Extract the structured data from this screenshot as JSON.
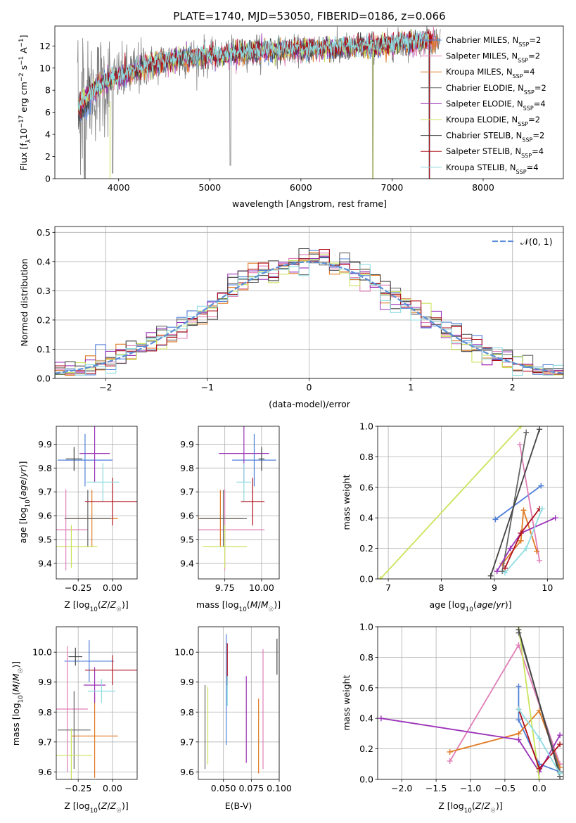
{
  "colors": {
    "Chabrier MILES": "#4f7fd8",
    "Salpeter MILES": "#e07fb8",
    "Kroupa MILES": "#e07a24",
    "Chabrier ELODIE": "#666666",
    "Salpeter ELODIE": "#9b32b8",
    "Kroupa ELODIE": "#c9e45b",
    "Chabrier STELIB": "#444444",
    "Salpeter STELIB": "#b0101c",
    "Kroupa STELIB": "#8fdce0",
    "data": "#808080",
    "gauss": "#5b8ed6"
  },
  "chart_data": [
    {
      "id": "spectrum",
      "type": "line",
      "title": "PLATE=1740, MJD=53050, FIBERID=0186, z=0.066",
      "xlabel": "wavelength [Angstrom, rest frame]",
      "ylabel": "Flux [f_λ 10^-17 erg cm^-2 s^-1 A^-1]",
      "xlim": [
        3300,
        8880
      ],
      "ylim": [
        0,
        13.8
      ],
      "xticks": [
        4000,
        5000,
        6000,
        7000,
        8000
      ],
      "yticks": [
        0,
        2,
        4,
        6,
        8,
        10,
        12
      ],
      "legend_loc": "upper right",
      "legend": [
        {
          "label": "Chabrier MILES, N",
          "sub": "SSP",
          "tail": "=2",
          "key": "Chabrier MILES"
        },
        {
          "label": "Salpeter MILES, N",
          "sub": "SSP",
          "tail": "=2",
          "key": "Salpeter MILES"
        },
        {
          "label": "Kroupa MILES, N",
          "sub": "SSP",
          "tail": "=4",
          "key": "Kroupa MILES"
        },
        {
          "label": "Chabrier ELODIE, N",
          "sub": "SSP",
          "tail": "=2",
          "key": "Chabrier ELODIE"
        },
        {
          "label": "Salpeter ELODIE, N",
          "sub": "SSP",
          "tail": "=4",
          "key": "Salpeter ELODIE"
        },
        {
          "label": "Kroupa ELODIE, N",
          "sub": "SSP",
          "tail": "=2",
          "key": "Kroupa ELODIE"
        },
        {
          "label": "Chabrier STELIB, N",
          "sub": "SSP",
          "tail": "=2",
          "key": "Chabrier STELIB"
        },
        {
          "label": "Salpeter STELIB, N",
          "sub": "SSP",
          "tail": "=4",
          "key": "Salpeter STELIB"
        },
        {
          "label": "Kroupa STELIB, N",
          "sub": "SSP",
          "tail": "=4",
          "key": "Kroupa STELIB"
        }
      ],
      "continuum": {
        "x": [
          3550,
          3650,
          3750,
          3850,
          3950,
          4050,
          4150,
          4250,
          4400,
          4600,
          4800,
          5000,
          5200,
          5500,
          5800,
          6000,
          6300,
          6600,
          7000,
          7300,
          7500
        ],
        "y": [
          6.2,
          7.5,
          8.2,
          8.6,
          9.0,
          9.3,
          9.6,
          10.0,
          10.4,
          10.8,
          11.0,
          11.1,
          11.2,
          11.5,
          11.6,
          11.6,
          11.8,
          11.9,
          12.1,
          12.4,
          12.6
        ]
      },
      "absorption_features": [
        {
          "x": 3934,
          "y": 0.5
        },
        {
          "x": 5225,
          "y": 1.2
        },
        {
          "x": 6790,
          "y": 0
        },
        {
          "x": 7410,
          "y": 0
        }
      ]
    },
    {
      "id": "residuals",
      "type": "histogram",
      "xlabel": "(data-model)/error",
      "ylabel": "Normed distribution",
      "xlim": [
        -2.5,
        2.5
      ],
      "ylim": [
        0,
        0.52
      ],
      "xticks": [
        -2,
        -1,
        0,
        1,
        2
      ],
      "yticks": [
        0.0,
        0.1,
        0.2,
        0.3,
        0.4,
        0.5
      ],
      "bin_width": 0.1,
      "legend": "𝒩(0, 1)",
      "legend_loc": "upper right",
      "gaussian": {
        "mean": 0,
        "sigma": 1
      }
    },
    {
      "id": "age_vs_Z",
      "type": "errorbar",
      "xlabel": "Z [log10(Z/Z☉)]",
      "ylabel": "age [log10(age/yr)]",
      "xlim": [
        -0.41,
        0.18
      ],
      "ylim": [
        9.335,
        9.975
      ],
      "xticks": [
        -0.25,
        0.0
      ],
      "yticks": [
        9.4,
        9.5,
        9.6,
        9.7,
        9.8,
        9.9
      ],
      "points": [
        {
          "model": "Chabrier MILES",
          "x": -0.2,
          "xerr": 0.2,
          "y": 9.833,
          "yerr": 0.11
        },
        {
          "model": "Salpeter MILES",
          "x": -0.34,
          "xerr": 0.16,
          "y": 9.541,
          "yerr": 0.17
        },
        {
          "model": "Kroupa MILES",
          "x": -0.15,
          "xerr": 0.19,
          "y": 9.588,
          "yerr": 0.12
        },
        {
          "model": "Chabrier ELODIE",
          "x": -0.18,
          "xerr": 0.17,
          "y": 9.588,
          "yerr": 0.12
        },
        {
          "model": "Salpeter ELODIE",
          "x": -0.13,
          "xerr": 0.11,
          "y": 9.861,
          "yerr": 0.12
        },
        {
          "model": "Kroupa ELODIE",
          "x": -0.3,
          "xerr": 0.19,
          "y": 9.471,
          "yerr": 0.09
        },
        {
          "model": "Chabrier STELIB",
          "x": -0.28,
          "xerr": 0.06,
          "y": 9.838,
          "yerr": 0.05
        },
        {
          "model": "Salpeter STELIB",
          "x": 0.0,
          "xerr": 0.2,
          "y": 9.659,
          "yerr": 0.1
        },
        {
          "model": "Kroupa STELIB",
          "x": -0.07,
          "xerr": 0.12,
          "y": 9.741,
          "yerr": 0.08
        }
      ]
    },
    {
      "id": "age_vs_mass",
      "type": "errorbar",
      "xlabel": "mass [log10(M/M☉)]",
      "ylabel": "",
      "xlim": [
        9.57,
        10.12
      ],
      "ylim": [
        9.335,
        9.975
      ],
      "xticks": [
        9.75,
        10.0
      ],
      "yticks": [
        9.4,
        9.5,
        9.6,
        9.7,
        9.8,
        9.9
      ],
      "points": [
        {
          "model": "Chabrier MILES",
          "x": 9.95,
          "xerr": 0.15,
          "y": 9.833,
          "yerr": 0.11
        },
        {
          "model": "Salpeter MILES",
          "x": 9.75,
          "xerr": 0.27,
          "y": 9.541,
          "yerr": 0.17
        },
        {
          "model": "Kroupa MILES",
          "x": 9.72,
          "xerr": 0.15,
          "y": 9.588,
          "yerr": 0.12
        },
        {
          "model": "Chabrier ELODIE",
          "x": 9.74,
          "xerr": 0.16,
          "y": 9.588,
          "yerr": 0.12
        },
        {
          "model": "Salpeter ELODIE",
          "x": 9.88,
          "xerr": 0.17,
          "y": 9.861,
          "yerr": 0.12
        },
        {
          "model": "Kroupa ELODIE",
          "x": 9.75,
          "xerr": 0.15,
          "y": 9.471,
          "yerr": 0.09
        },
        {
          "model": "Chabrier STELIB",
          "x": 10.0,
          "xerr": 0.02,
          "y": 9.838,
          "yerr": 0.05
        },
        {
          "model": "Salpeter STELIB",
          "x": 9.94,
          "xerr": 0.08,
          "y": 9.659,
          "yerr": 0.1
        },
        {
          "model": "Kroupa STELIB",
          "x": 9.88,
          "xerr": 0.05,
          "y": 9.741,
          "yerr": 0.08
        }
      ]
    },
    {
      "id": "mass_weight_vs_age",
      "type": "line",
      "xlabel": "age  [log10(age/yr)]",
      "ylabel": "mass weight",
      "xlim": [
        6.8,
        10.3
      ],
      "ylim": [
        0,
        1.0
      ],
      "xticks": [
        7,
        8,
        9,
        10
      ],
      "yticks": [
        0.0,
        0.2,
        0.4,
        0.6,
        0.8,
        1.0
      ],
      "series": [
        {
          "model": "Chabrier MILES",
          "x": [
            9.02,
            9.88
          ],
          "y": [
            0.39,
            0.61
          ]
        },
        {
          "model": "Salpeter MILES",
          "x": [
            9.48,
            9.85
          ],
          "y": [
            0.88,
            0.12
          ]
        },
        {
          "model": "Kroupa MILES",
          "x": [
            9.15,
            9.5,
            9.55,
            9.8
          ],
          "y": [
            0.1,
            0.25,
            0.45,
            0.18
          ]
        },
        {
          "model": "Chabrier ELODIE",
          "x": [
            9.15,
            9.6
          ],
          "y": [
            0.05,
            0.96
          ]
        },
        {
          "model": "Salpeter ELODIE",
          "x": [
            9.05,
            9.3,
            9.5,
            10.15
          ],
          "y": [
            0.05,
            0.2,
            0.3,
            0.4
          ]
        },
        {
          "model": "Kroupa ELODIE",
          "x": [
            6.85,
            9.5
          ],
          "y": [
            0.0,
            1.0
          ]
        },
        {
          "model": "Chabrier STELIB",
          "x": [
            8.93,
            9.85
          ],
          "y": [
            0.02,
            0.98
          ]
        },
        {
          "model": "Salpeter STELIB",
          "x": [
            9.2,
            9.5,
            9.85
          ],
          "y": [
            0.07,
            0.3,
            0.46
          ]
        },
        {
          "model": "Kroupa STELIB",
          "x": [
            9.2,
            9.6,
            9.9
          ],
          "y": [
            0.04,
            0.2,
            0.46
          ]
        }
      ]
    },
    {
      "id": "mass_vs_Z",
      "type": "errorbar",
      "xlabel": "Z [log10(Z/Z☉)]",
      "ylabel": "mass [log10(M/M☉)]",
      "xlim": [
        -0.41,
        0.18
      ],
      "ylim": [
        9.575,
        10.085
      ],
      "xticks": [
        -0.25,
        0.0
      ],
      "yticks": [
        9.6,
        9.7,
        9.8,
        9.9,
        10.0
      ],
      "points": [
        {
          "model": "Chabrier MILES",
          "x": -0.17,
          "xerr": 0.18,
          "y": 9.97,
          "yerr": 0.07
        },
        {
          "model": "Salpeter MILES",
          "x": -0.33,
          "xerr": 0.15,
          "y": 9.81,
          "yerr": 0.21
        },
        {
          "model": "Kroupa MILES",
          "x": -0.13,
          "xerr": 0.17,
          "y": 9.72,
          "yerr": 0.14
        },
        {
          "model": "Chabrier ELODIE",
          "x": -0.28,
          "xerr": 0.12,
          "y": 9.74,
          "yerr": 0.13
        },
        {
          "model": "Salpeter ELODIE",
          "x": -0.13,
          "xerr": 0.08,
          "y": 9.89,
          "yerr": 0.06
        },
        {
          "model": "Kroupa ELODIE",
          "x": -0.3,
          "xerr": 0.15,
          "y": 9.655,
          "yerr": 0.09
        },
        {
          "model": "Chabrier STELIB",
          "x": -0.27,
          "xerr": 0.05,
          "y": 9.985,
          "yerr": 0.03
        },
        {
          "model": "Salpeter STELIB",
          "x": 0.0,
          "xerr": 0.2,
          "y": 9.94,
          "yerr": 0.05
        },
        {
          "model": "Kroupa STELIB",
          "x": -0.08,
          "xerr": 0.1,
          "y": 9.87,
          "yerr": 0.04
        }
      ]
    },
    {
      "id": "mass_vs_ebv",
      "type": "errorbar",
      "xlabel": "E(B-V)",
      "ylabel": "",
      "xlim": [
        0.0275,
        0.1
      ],
      "ylim": [
        9.575,
        10.085
      ],
      "xticks": [
        0.05,
        0.075,
        0.1
      ],
      "xticklabels": [
        "0.050",
        "0.075",
        "0.100"
      ],
      "yticks": [
        9.6,
        9.7,
        9.8,
        9.9,
        10.0
      ],
      "points": [
        {
          "model": "Chabrier MILES",
          "x": 0.0525,
          "y": 9.875,
          "yerr": 0.185
        },
        {
          "model": "Salpeter MILES",
          "x": 0.0855,
          "y": 9.81,
          "yerr": 0.2
        },
        {
          "model": "Kroupa MILES",
          "x": 0.0815,
          "y": 9.72,
          "yerr": 0.125
        },
        {
          "model": "Chabrier ELODIE",
          "x": 0.0335,
          "y": 9.75,
          "yerr": 0.14
        },
        {
          "model": "Salpeter ELODIE",
          "x": 0.0705,
          "y": 9.775,
          "yerr": 0.145
        },
        {
          "model": "Kroupa ELODIE",
          "x": 0.036,
          "y": 9.755,
          "yerr": 0.13
        },
        {
          "model": "Chabrier STELIB",
          "x": 0.098,
          "y": 9.985,
          "yerr": 0.06
        },
        {
          "model": "Salpeter STELIB",
          "x": 0.0535,
          "y": 9.96,
          "yerr": 0.07
        },
        {
          "model": "Kroupa STELIB",
          "x": 0.0535,
          "y": 9.87,
          "yerr": 0.05
        }
      ]
    },
    {
      "id": "mass_weight_vs_Z",
      "type": "line",
      "xlabel": "Z [log10(Z/Z☉)]",
      "ylabel": "mass weight",
      "xlim": [
        -2.35,
        0.35
      ],
      "ylim": [
        0,
        1.0
      ],
      "xticks": [
        -2.0,
        -1.5,
        -1.0,
        -0.5,
        0.0
      ],
      "xticklabels": [
        "−2.0",
        "−1.5",
        "−1.0",
        "−0.5",
        "0.0"
      ],
      "yticks": [
        0.0,
        0.2,
        0.4,
        0.6,
        0.8,
        1.0
      ],
      "series": [
        {
          "model": "Chabrier MILES",
          "x": [
            -0.3,
            -0.3,
            0.0,
            0.3
          ],
          "y": [
            0.61,
            0.39,
            0.1,
            0.05
          ]
        },
        {
          "model": "Salpeter MILES",
          "x": [
            -1.3,
            -0.3,
            0.3
          ],
          "y": [
            0.12,
            0.88,
            0.1
          ]
        },
        {
          "model": "Kroupa MILES",
          "x": [
            -1.3,
            -0.3,
            0.0,
            0.3
          ],
          "y": [
            0.18,
            0.3,
            0.45,
            0.08
          ]
        },
        {
          "model": "Chabrier ELODIE",
          "x": [
            -0.3,
            0.3
          ],
          "y": [
            0.96,
            0.05
          ]
        },
        {
          "model": "Salpeter ELODIE",
          "x": [
            -2.3,
            -0.3,
            0.0,
            0.3
          ],
          "y": [
            0.4,
            0.26,
            0.05,
            0.29
          ]
        },
        {
          "model": "Kroupa ELODIE",
          "x": [
            -0.3,
            0.0
          ],
          "y": [
            1.0,
            0.0
          ]
        },
        {
          "model": "Chabrier STELIB",
          "x": [
            -0.3,
            0.3
          ],
          "y": [
            0.98,
            0.02
          ]
        },
        {
          "model": "Salpeter STELIB",
          "x": [
            -0.3,
            0.0,
            0.3
          ],
          "y": [
            0.46,
            0.07,
            0.23
          ]
        },
        {
          "model": "Kroupa STELIB",
          "x": [
            -0.3,
            0.0,
            0.3
          ],
          "y": [
            0.46,
            0.27,
            0.04
          ]
        }
      ]
    }
  ]
}
